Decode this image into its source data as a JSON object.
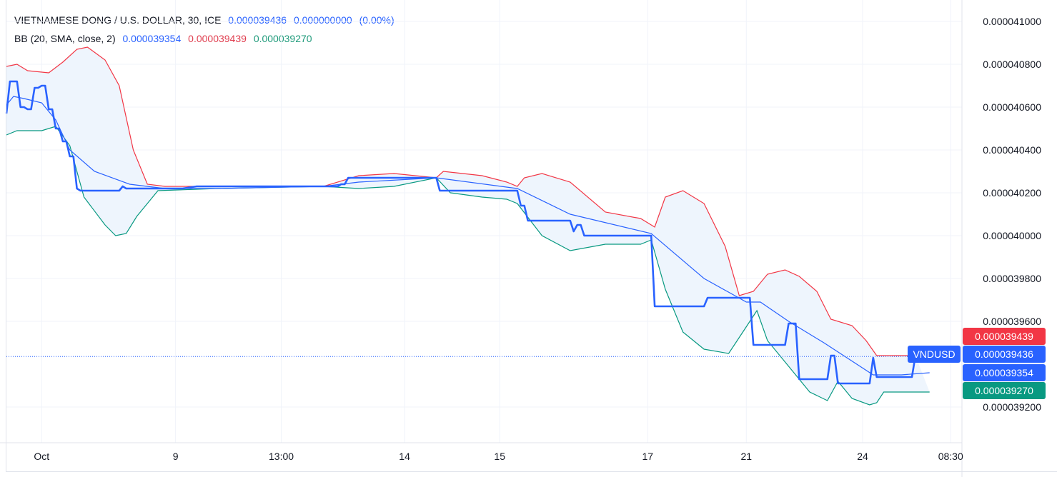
{
  "legend": {
    "symbol": "VIETNAMESE DONG / U.S. DOLLAR, 30, ICE",
    "last": "0.000039436",
    "change": "0.000000000",
    "change_pct": "(0.00%)",
    "bb_label": "BB (20, SMA, close, 2)",
    "bb_basis": "0.000039354",
    "bb_upper": "0.000039439",
    "bb_lower": "0.000039270"
  },
  "price_tag": {
    "symbol_label": "VNDUSD",
    "upper": "0.000039439",
    "last": "0.000039436",
    "basis": "0.000039354",
    "lower": "0.000039270"
  },
  "colors": {
    "price": "#2962ff",
    "basis": "#2962ff",
    "upper": "#f23645",
    "lower": "#089981",
    "band_fill": "#eef5fd",
    "grid": "#f0f3fa",
    "axis_text": "#131722"
  },
  "chart_data": {
    "type": "line",
    "ylim": [
      3.91e-05,
      4.11e-05
    ],
    "y_ticks": [
      "0.000041000",
      "0.000040800",
      "0.000040600",
      "0.000040400",
      "0.000040200",
      "0.000040000",
      "0.000039800",
      "0.000039600",
      "0.000039200"
    ],
    "y_tick_values": [
      4.1e-05,
      4.08e-05,
      4.06e-05,
      4.04e-05,
      4.02e-05,
      4e-05,
      3.98e-05,
      3.96e-05,
      3.92e-05
    ],
    "x_ticks": [
      {
        "label": "Oct",
        "bar": 10
      },
      {
        "label": "9",
        "bar": 48
      },
      {
        "label": "13:00",
        "bar": 78
      },
      {
        "label": "14",
        "bar": 113
      },
      {
        "label": "15",
        "bar": 140
      },
      {
        "label": "17",
        "bar": 182
      },
      {
        "label": "21",
        "bar": 210
      },
      {
        "label": "24",
        "bar": 243
      },
      {
        "label": "08:30",
        "bar": 268
      }
    ],
    "grid": true,
    "series": [
      {
        "name": "VNDUSD",
        "role": "price",
        "points": [
          [
            0,
            4.057e-05
          ],
          [
            1,
            4.072e-05
          ],
          [
            3,
            4.072e-05
          ],
          [
            4,
            4.06e-05
          ],
          [
            5,
            4.06e-05
          ],
          [
            6,
            4.059e-05
          ],
          [
            7,
            4.059e-05
          ],
          [
            8,
            4.069e-05
          ],
          [
            9,
            4.069e-05
          ],
          [
            10,
            4.07e-05
          ],
          [
            11,
            4.07e-05
          ],
          [
            12,
            4.059e-05
          ],
          [
            13,
            4.059e-05
          ],
          [
            14,
            4.05e-05
          ],
          [
            15,
            4.05e-05
          ],
          [
            16,
            4.044e-05
          ],
          [
            17,
            4.044e-05
          ],
          [
            18,
            4.037e-05
          ],
          [
            19,
            4.037e-05
          ],
          [
            20,
            4.022e-05
          ],
          [
            21,
            4.021e-05
          ],
          [
            26,
            4.021e-05
          ],
          [
            29,
            4.021e-05
          ],
          [
            32,
            4.021e-05
          ],
          [
            33,
            4.023e-05
          ],
          [
            34,
            4.022e-05
          ],
          [
            50,
            4.022e-05
          ],
          [
            54,
            4.023e-05
          ],
          [
            80,
            4.023e-05
          ],
          [
            94,
            4.023e-05
          ],
          [
            95,
            4.024e-05
          ],
          [
            96,
            4.024e-05
          ],
          [
            97,
            4.027e-05
          ],
          [
            102,
            4.027e-05
          ],
          [
            118,
            4.027e-05
          ],
          [
            122,
            4.027e-05
          ],
          [
            123,
            4.021e-05
          ],
          [
            142,
            4.021e-05
          ],
          [
            145,
            4.021e-05
          ],
          [
            146,
            4.014e-05
          ],
          [
            147,
            4.014e-05
          ],
          [
            148,
            4.007e-05
          ],
          [
            160,
            4.007e-05
          ],
          [
            161,
            4.002e-05
          ],
          [
            162,
            4.005e-05
          ],
          [
            163,
            4.005e-05
          ],
          [
            164,
            4e-05
          ],
          [
            183,
            4e-05
          ],
          [
            184,
            3.967e-05
          ],
          [
            198,
            3.967e-05
          ],
          [
            199,
            3.971e-05
          ],
          [
            211,
            3.971e-05
          ],
          [
            212,
            3.949e-05
          ],
          [
            221,
            3.949e-05
          ],
          [
            222,
            3.959e-05
          ],
          [
            224,
            3.959e-05
          ],
          [
            225,
            3.933e-05
          ],
          [
            233,
            3.933e-05
          ],
          [
            234,
            3.944e-05
          ],
          [
            235,
            3.944e-05
          ],
          [
            236,
            3.931e-05
          ],
          [
            245,
            3.931e-05
          ],
          [
            246,
            3.943e-05
          ],
          [
            247,
            3.934e-05
          ],
          [
            257,
            3.934e-05
          ],
          [
            258,
            3.944e-05
          ]
        ]
      },
      {
        "name": "basis",
        "role": "basis",
        "points": [
          [
            0,
            4.061e-05
          ],
          [
            2,
            4.065e-05
          ],
          [
            5,
            4.064e-05
          ],
          [
            10,
            4.062e-05
          ],
          [
            14,
            4.054e-05
          ],
          [
            18,
            4.04e-05
          ],
          [
            25,
            4.03e-05
          ],
          [
            35,
            4.024e-05
          ],
          [
            45,
            4.022e-05
          ],
          [
            60,
            4.022e-05
          ],
          [
            90,
            4.023e-05
          ],
          [
            100,
            4.025e-05
          ],
          [
            122,
            4.027e-05
          ],
          [
            145,
            4.022e-05
          ],
          [
            160,
            4.01e-05
          ],
          [
            183,
            4.001e-05
          ],
          [
            198,
            3.98e-05
          ],
          [
            210,
            3.969e-05
          ],
          [
            214,
            3.969e-05
          ],
          [
            222,
            3.96e-05
          ],
          [
            232,
            3.95e-05
          ],
          [
            246,
            3.935e-05
          ],
          [
            254,
            3.935e-05
          ],
          [
            262,
            3.936e-05
          ]
        ]
      },
      {
        "name": "upper",
        "role": "upper",
        "points": [
          [
            0,
            4.079e-05
          ],
          [
            3,
            4.08e-05
          ],
          [
            6,
            4.077e-05
          ],
          [
            12,
            4.076e-05
          ],
          [
            16,
            4.081e-05
          ],
          [
            20,
            4.087e-05
          ],
          [
            23,
            4.088e-05
          ],
          [
            28,
            4.082e-05
          ],
          [
            32,
            4.07e-05
          ],
          [
            36,
            4.04e-05
          ],
          [
            40,
            4.024e-05
          ],
          [
            45,
            4.023e-05
          ],
          [
            60,
            4.023e-05
          ],
          [
            90,
            4.023e-05
          ],
          [
            100,
            4.028e-05
          ],
          [
            110,
            4.029e-05
          ],
          [
            122,
            4.027e-05
          ],
          [
            124,
            4.03e-05
          ],
          [
            135,
            4.028e-05
          ],
          [
            142,
            4.025e-05
          ],
          [
            145,
            4.023e-05
          ],
          [
            147,
            4.027e-05
          ],
          [
            152,
            4.029e-05
          ],
          [
            160,
            4.025e-05
          ],
          [
            170,
            4.011e-05
          ],
          [
            180,
            4.008e-05
          ],
          [
            184,
            4.004e-05
          ],
          [
            187,
            4.018e-05
          ],
          [
            192,
            4.021e-05
          ],
          [
            198,
            4.015e-05
          ],
          [
            204,
            3.995e-05
          ],
          [
            208,
            3.972e-05
          ],
          [
            212,
            3.974e-05
          ],
          [
            216,
            3.982e-05
          ],
          [
            221,
            3.984e-05
          ],
          [
            225,
            3.981e-05
          ],
          [
            230,
            3.974e-05
          ],
          [
            234,
            3.961e-05
          ],
          [
            240,
            3.958e-05
          ],
          [
            244,
            3.951e-05
          ],
          [
            247,
            3.944e-05
          ],
          [
            258,
            3.944e-05
          ]
        ]
      },
      {
        "name": "lower",
        "role": "lower",
        "points": [
          [
            0,
            4.047e-05
          ],
          [
            3,
            4.049e-05
          ],
          [
            10,
            4.049e-05
          ],
          [
            14,
            4.051e-05
          ],
          [
            18,
            4.042e-05
          ],
          [
            22,
            4.018e-05
          ],
          [
            28,
            4.005e-05
          ],
          [
            31,
            4e-05
          ],
          [
            34,
            4.001e-05
          ],
          [
            37,
            4.009e-05
          ],
          [
            40,
            4.015e-05
          ],
          [
            43,
            4.021e-05
          ],
          [
            60,
            4.022e-05
          ],
          [
            90,
            4.023e-05
          ],
          [
            100,
            4.022e-05
          ],
          [
            110,
            4.023e-05
          ],
          [
            122,
            4.027e-05
          ],
          [
            126,
            4.02e-05
          ],
          [
            135,
            4.018e-05
          ],
          [
            142,
            4.017e-05
          ],
          [
            145,
            4.015e-05
          ],
          [
            152,
            4e-05
          ],
          [
            160,
            3.993e-05
          ],
          [
            170,
            3.996e-05
          ],
          [
            180,
            3.996e-05
          ],
          [
            183,
            3.998e-05
          ],
          [
            187,
            3.975e-05
          ],
          [
            192,
            3.955e-05
          ],
          [
            198,
            3.947e-05
          ],
          [
            205,
            3.945e-05
          ],
          [
            209,
            3.955e-05
          ],
          [
            213,
            3.965e-05
          ],
          [
            216,
            3.951e-05
          ],
          [
            222,
            3.939e-05
          ],
          [
            228,
            3.927e-05
          ],
          [
            233,
            3.923e-05
          ],
          [
            236,
            3.932e-05
          ],
          [
            240,
            3.924e-05
          ],
          [
            245,
            3.921e-05
          ],
          [
            247,
            3.922e-05
          ],
          [
            249,
            3.927e-05
          ],
          [
            260,
            3.927e-05
          ],
          [
            262,
            3.927e-05
          ]
        ]
      }
    ]
  }
}
